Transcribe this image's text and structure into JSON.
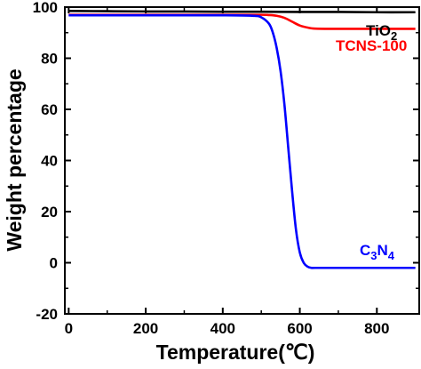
{
  "chart_data": {
    "type": "line",
    "xlabel": "Temperature(℃)",
    "ylabel": "Weight percentage",
    "xlim": [
      -10,
      910
    ],
    "ylim": [
      -20,
      100
    ],
    "x_ticks": [
      0,
      200,
      400,
      600,
      800
    ],
    "y_ticks": [
      -20,
      0,
      20,
      40,
      60,
      80,
      100
    ],
    "grid": false,
    "series": [
      {
        "name": "TiO2",
        "label_main": "TiO",
        "label_sub": "2",
        "color": "#000000",
        "x": [
          0,
          100,
          200,
          300,
          400,
          500,
          600,
          700,
          800,
          900
        ],
        "y": [
          98.5,
          98.4,
          98.3,
          98.3,
          98.2,
          98.2,
          98.1,
          98.1,
          98.0,
          98.0
        ]
      },
      {
        "name": "TCNS-100",
        "label_main": "TCNS-100",
        "label_sub": "",
        "color": "#ff0000",
        "x": [
          0,
          100,
          200,
          300,
          400,
          500,
          520,
          540,
          560,
          580,
          600,
          620,
          640,
          700,
          800,
          900
        ],
        "y": [
          97.0,
          97.0,
          97.0,
          97.0,
          97.0,
          97.0,
          96.9,
          96.6,
          95.8,
          94.3,
          92.8,
          92.0,
          91.6,
          91.5,
          91.5,
          91.5
        ]
      },
      {
        "name": "C3N4",
        "label_main": "C",
        "label_sub": "3",
        "label_main2": "N",
        "label_sub2": "4",
        "color": "#0000ff",
        "x": [
          0,
          100,
          200,
          300,
          400,
          480,
          500,
          520,
          530,
          540,
          550,
          560,
          570,
          580,
          590,
          600,
          610,
          620,
          630,
          640,
          700,
          800,
          900
        ],
        "y": [
          96.8,
          96.8,
          96.8,
          96.8,
          96.8,
          96.6,
          96.0,
          93.5,
          90.0,
          84.0,
          75.0,
          62.0,
          45.0,
          28.0,
          13.0,
          4.0,
          0.0,
          -1.5,
          -2.0,
          -2.0,
          -2.0,
          -2.0,
          -2.0
        ]
      }
    ]
  }
}
